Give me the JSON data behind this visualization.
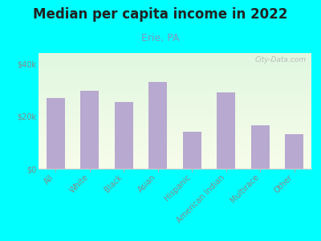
{
  "title": "Median per capita income in 2022",
  "subtitle": "Erie, PA",
  "categories": [
    "All",
    "White",
    "Black",
    "Asian",
    "Hispanic",
    "American Indian",
    "Multirace",
    "Other"
  ],
  "values": [
    27000,
    29500,
    25500,
    33000,
    14000,
    29000,
    16500,
    13000
  ],
  "bar_color": "#b8a9d0",
  "background_color": "#00ffff",
  "title_color": "#222222",
  "subtitle_color": "#7a9abf",
  "tick_color": "#888888",
  "ylim": [
    0,
    44000
  ],
  "yticks": [
    0,
    20000,
    40000
  ],
  "ytick_labels": [
    "$0",
    "$20k",
    "$40k"
  ],
  "watermark": "City-Data.com",
  "title_fontsize": 12,
  "subtitle_fontsize": 9,
  "tick_fontsize": 7
}
